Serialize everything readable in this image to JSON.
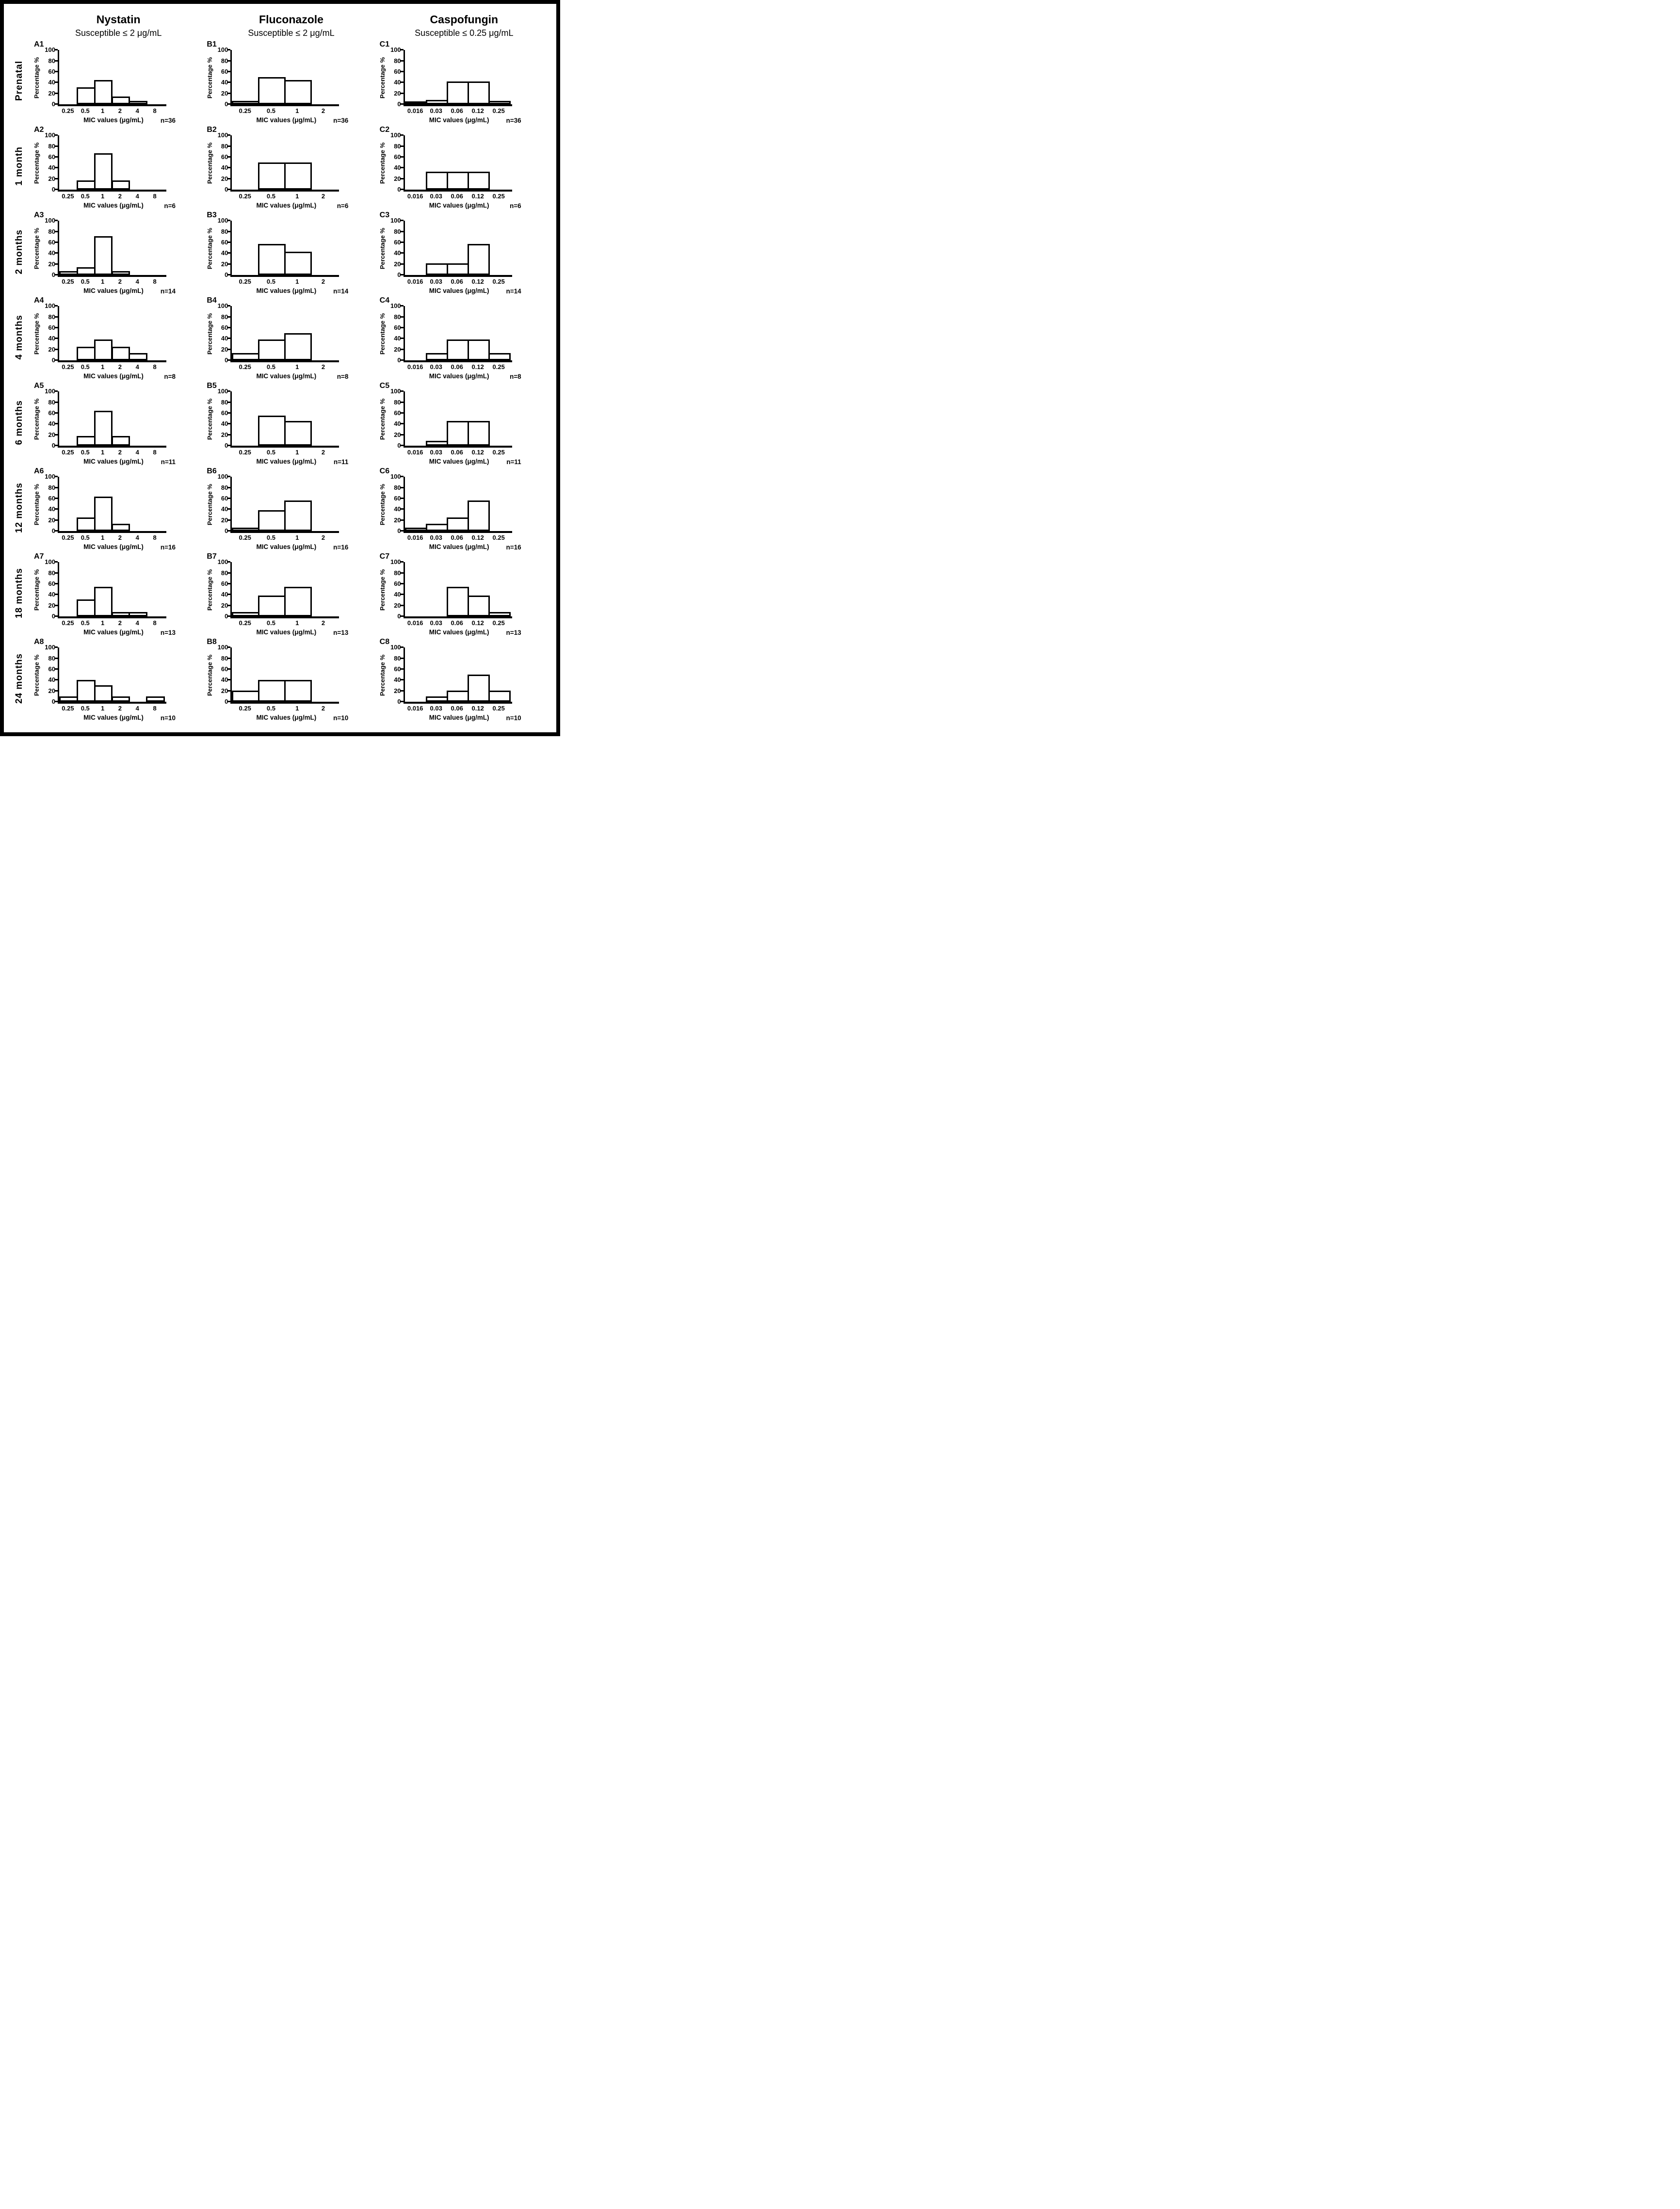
{
  "chart_data": {
    "type": "bar",
    "ylabel": "Percentage %",
    "ylim": [
      0,
      100
    ],
    "yticks": [
      0,
      20,
      40,
      60,
      80,
      100
    ],
    "xlabel": "MIC values (μg/mL)",
    "grid": false,
    "columns": [
      {
        "id_prefix": "A",
        "title": "Nystatin",
        "subtitle": "Susceptible ≤ 2 μg/mL",
        "categories": [
          "0.25",
          "0.5",
          "1",
          "2",
          "4",
          "8"
        ]
      },
      {
        "id_prefix": "B",
        "title": "Fluconazole",
        "subtitle": "Susceptible ≤ 2 μg/mL",
        "categories": [
          "0.25",
          "0.5",
          "1",
          "2"
        ]
      },
      {
        "id_prefix": "C",
        "title": "Caspofungin",
        "subtitle": "Susceptible ≤ 0.25 μg/mL",
        "categories": [
          "0.016",
          "0.03",
          "0.06",
          "0.12",
          "0.25"
        ]
      }
    ],
    "rows": [
      {
        "label": "Prenatal",
        "n_label": "n=36",
        "panels": [
          {
            "id": "A1",
            "values": [
              0,
              31,
              44,
              14,
              6,
              0
            ]
          },
          {
            "id": "B1",
            "values": [
              6,
              50,
              44,
              0
            ]
          },
          {
            "id": "C1",
            "values": [
              3,
              8,
              42,
              42,
              6
            ]
          }
        ]
      },
      {
        "label": "1 month",
        "n_label": "n=6",
        "panels": [
          {
            "id": "A2",
            "values": [
              0,
              17,
              67,
              17,
              0,
              0
            ]
          },
          {
            "id": "B2",
            "values": [
              0,
              50,
              50,
              0
            ]
          },
          {
            "id": "C2",
            "values": [
              0,
              33,
              33,
              33,
              0
            ]
          }
        ]
      },
      {
        "label": "2 months",
        "n_label": "n=14",
        "panels": [
          {
            "id": "A3",
            "values": [
              7,
              14,
              71,
              7,
              0,
              0
            ]
          },
          {
            "id": "B3",
            "values": [
              0,
              57,
              43,
              0
            ]
          },
          {
            "id": "C3",
            "values": [
              0,
              21,
              21,
              57,
              0
            ]
          }
        ]
      },
      {
        "label": "4 months",
        "n_label": "n=8",
        "panels": [
          {
            "id": "A4",
            "values": [
              0,
              25,
              38,
              25,
              13,
              0
            ]
          },
          {
            "id": "B4",
            "values": [
              13,
              38,
              50,
              0
            ]
          },
          {
            "id": "C4",
            "values": [
              0,
              13,
              38,
              38,
              13
            ]
          }
        ]
      },
      {
        "label": "6 months",
        "n_label": "n=11",
        "panels": [
          {
            "id": "A5",
            "values": [
              0,
              18,
              64,
              18,
              0,
              0
            ]
          },
          {
            "id": "B5",
            "values": [
              0,
              55,
              45,
              0
            ]
          },
          {
            "id": "C5",
            "values": [
              0,
              9,
              45,
              45,
              0
            ]
          }
        ]
      },
      {
        "label": "12 months",
        "n_label": "n=16",
        "panels": [
          {
            "id": "A6",
            "values": [
              0,
              25,
              63,
              13,
              0,
              0
            ]
          },
          {
            "id": "B6",
            "values": [
              6,
              38,
              56,
              0
            ]
          },
          {
            "id": "C6",
            "values": [
              6,
              13,
              25,
              56,
              0
            ]
          }
        ]
      },
      {
        "label": "18 months",
        "n_label": "n=13",
        "panels": [
          {
            "id": "A7",
            "values": [
              0,
              31,
              54,
              8,
              8,
              0
            ]
          },
          {
            "id": "B7",
            "values": [
              8,
              38,
              54,
              0
            ]
          },
          {
            "id": "C7",
            "values": [
              0,
              0,
              54,
              38,
              8
            ]
          }
        ]
      },
      {
        "label": "24 months",
        "n_label": "n=10",
        "panels": [
          {
            "id": "A8",
            "values": [
              10,
              40,
              30,
              10,
              0,
              10
            ]
          },
          {
            "id": "B8",
            "values": [
              20,
              40,
              40,
              0
            ]
          },
          {
            "id": "C8",
            "values": [
              0,
              10,
              20,
              50,
              20
            ]
          }
        ]
      }
    ]
  }
}
